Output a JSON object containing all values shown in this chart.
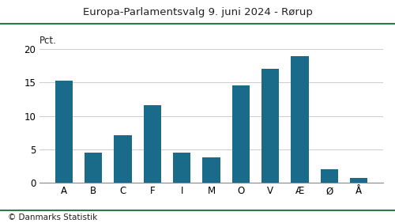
{
  "title": "Europa-Parlamentsvalg 9. juni 2024 - Rørup",
  "categories": [
    "A",
    "B",
    "C",
    "F",
    "I",
    "M",
    "O",
    "V",
    "Æ",
    "Ø",
    "Å"
  ],
  "values": [
    15.3,
    4.5,
    7.1,
    11.6,
    4.5,
    3.8,
    14.6,
    17.0,
    19.0,
    2.0,
    0.7
  ],
  "bar_color": "#1a6a8a",
  "ylabel": "Pct.",
  "ylim": [
    0,
    20
  ],
  "yticks": [
    0,
    5,
    10,
    15,
    20
  ],
  "footer": "© Danmarks Statistik",
  "title_color": "#222222",
  "background_color": "#ffffff",
  "title_line_color": "#2a7a4a",
  "footer_line_color": "#2a7a4a"
}
